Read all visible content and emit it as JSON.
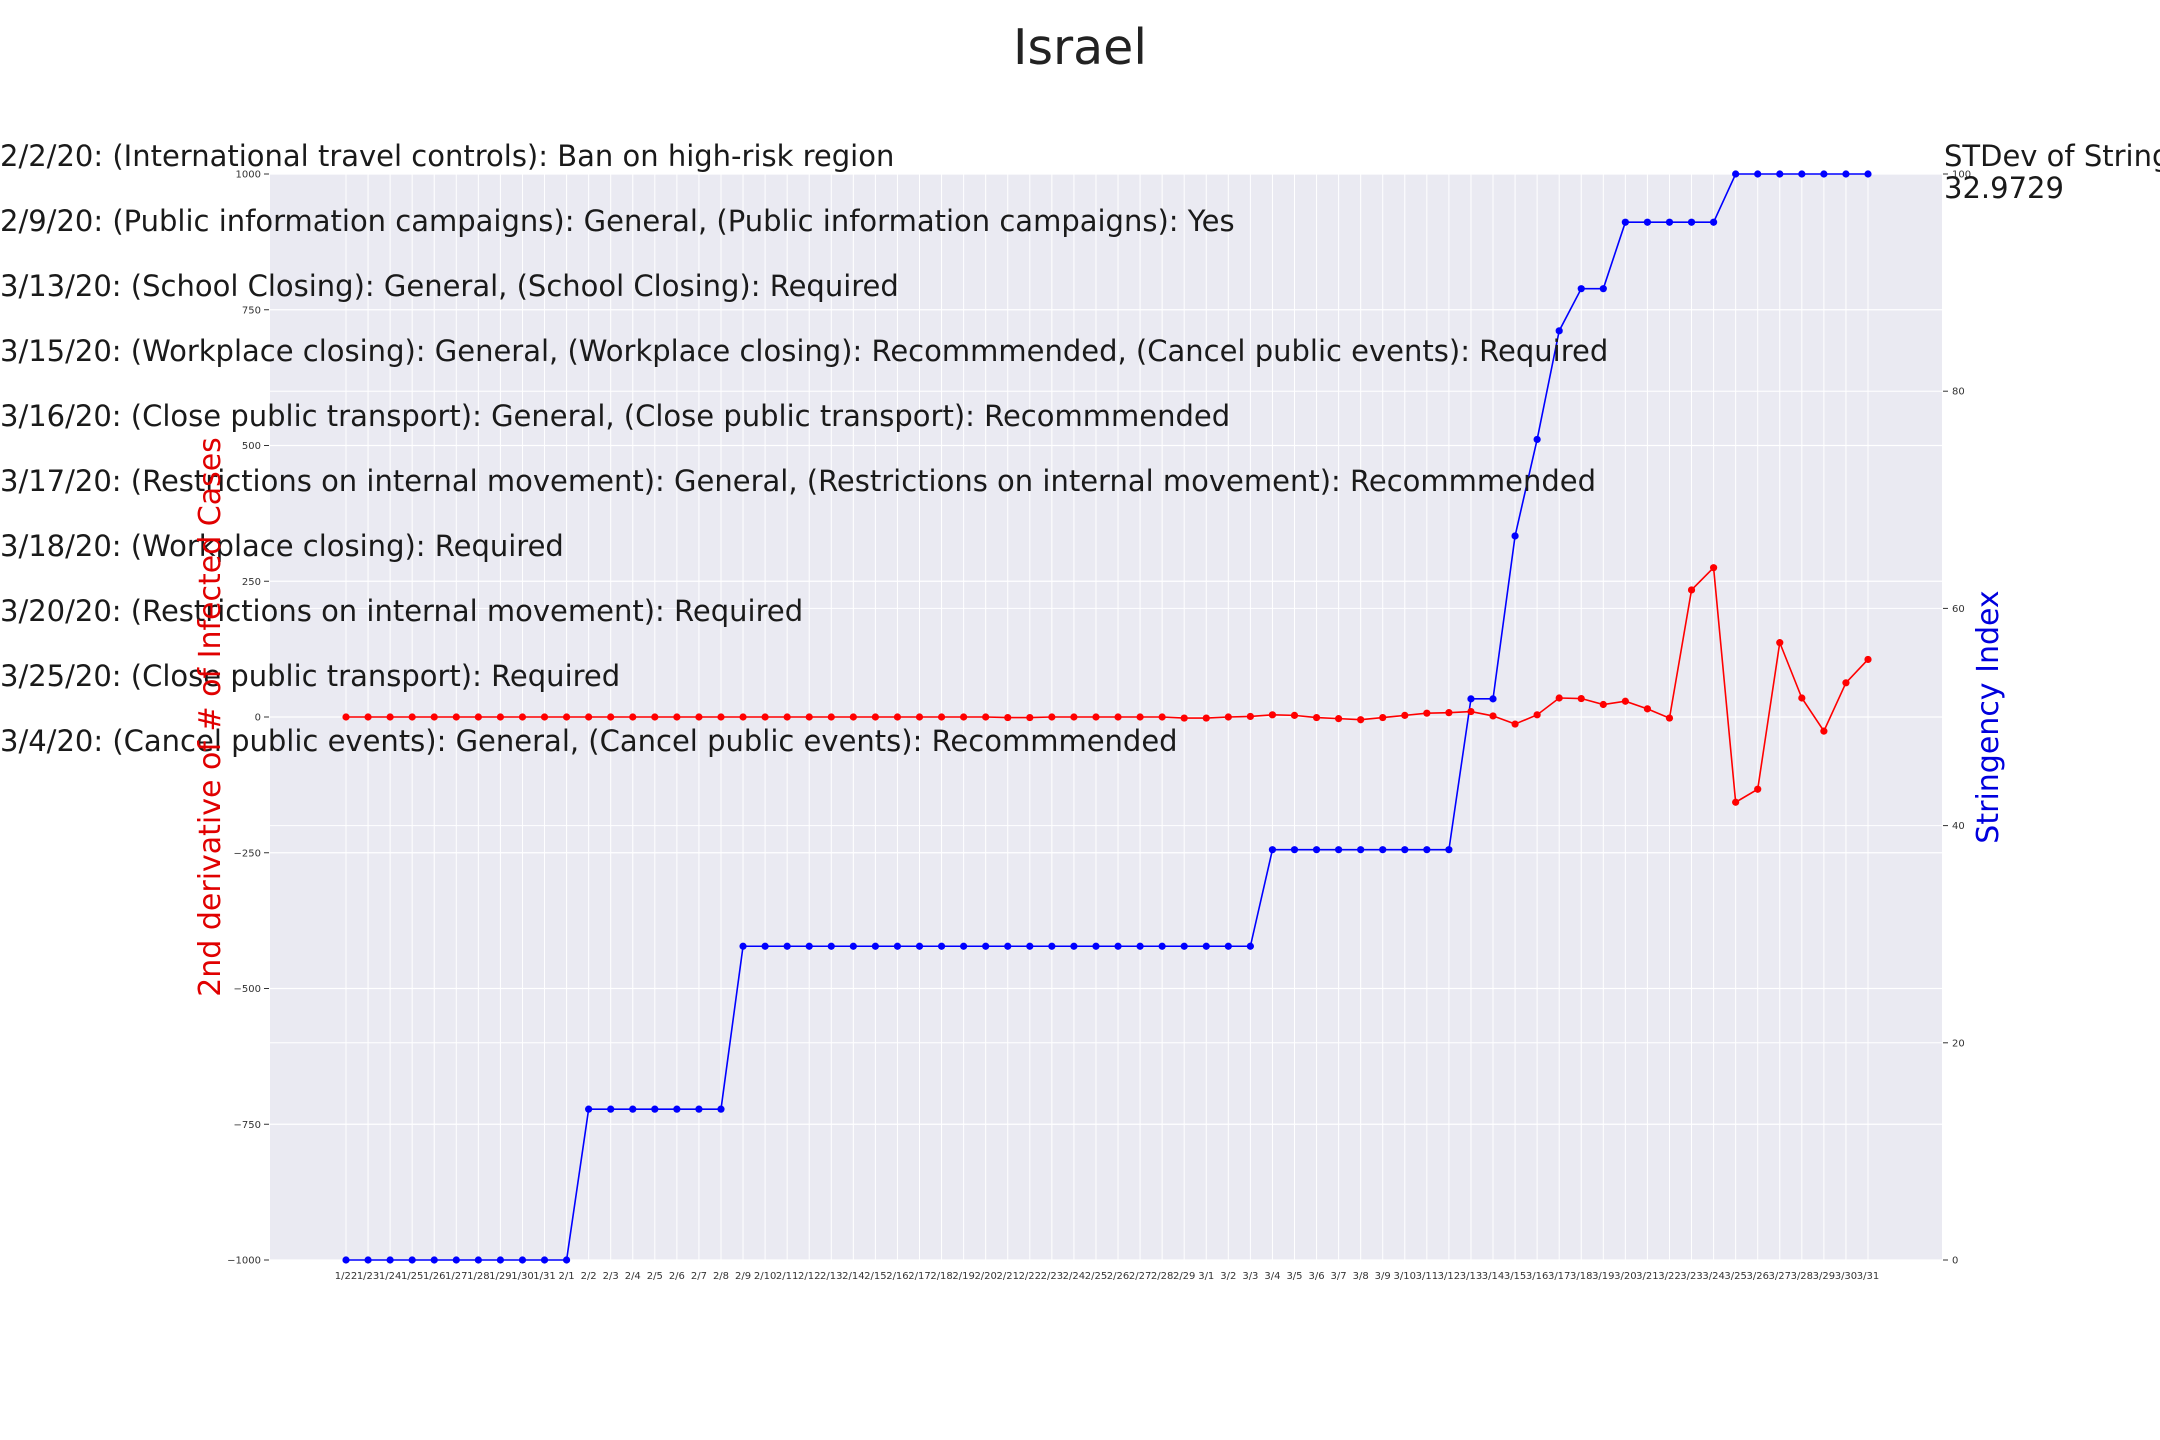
{
  "chart_data": {
    "type": "line",
    "title": "Israel",
    "x": [
      "1/22",
      "1/23",
      "1/24",
      "1/25",
      "1/26",
      "1/27",
      "1/28",
      "1/29",
      "1/30",
      "1/31",
      "2/1",
      "2/2",
      "2/3",
      "2/4",
      "2/5",
      "2/6",
      "2/7",
      "2/8",
      "2/9",
      "2/10",
      "2/11",
      "2/12",
      "2/13",
      "2/14",
      "2/15",
      "2/16",
      "2/17",
      "2/18",
      "2/19",
      "2/20",
      "2/21",
      "2/22",
      "2/23",
      "2/24",
      "2/25",
      "2/26",
      "2/27",
      "2/28",
      "2/29",
      "3/1",
      "3/2",
      "3/3",
      "3/4",
      "3/5",
      "3/6",
      "3/7",
      "3/8",
      "3/9",
      "3/10",
      "3/11",
      "3/12",
      "3/13",
      "3/14",
      "3/15",
      "3/16",
      "3/17",
      "3/18",
      "3/19",
      "3/20",
      "3/21",
      "3/22",
      "3/23",
      "3/24",
      "3/25",
      "3/26",
      "3/27",
      "3/28",
      "3/29",
      "3/30",
      "3/31"
    ],
    "series": [
      {
        "name": "",
        "axis": "left",
        "color": "#ff0000",
        "values": [
          0,
          0,
          0,
          0,
          0,
          0,
          0,
          0,
          0,
          0,
          0,
          0,
          0,
          0,
          0,
          0,
          0,
          0,
          0,
          0,
          0,
          0,
          0,
          0,
          0,
          0,
          0,
          0,
          0,
          0,
          -1,
          -1,
          0,
          0,
          0,
          0,
          0,
          0,
          -2,
          -2,
          0,
          1,
          4,
          3,
          -1,
          -3,
          -5,
          -1,
          3,
          7,
          8,
          10,
          2,
          -13,
          4,
          35,
          34,
          23,
          29,
          15,
          -2,
          234,
          275,
          -157,
          -133,
          137,
          35,
          -26,
          63,
          106
        ]
      },
      {
        "name": "",
        "axis": "right",
        "color": "#0000ff",
        "values": [
          0,
          0,
          0,
          0,
          0,
          0,
          0,
          0,
          0,
          0,
          0,
          13.89,
          13.89,
          13.89,
          13.89,
          13.89,
          13.89,
          13.89,
          28.89,
          28.89,
          28.89,
          28.89,
          28.89,
          28.89,
          28.89,
          28.89,
          28.89,
          28.89,
          28.89,
          28.89,
          28.89,
          28.89,
          28.89,
          28.89,
          28.89,
          28.89,
          28.89,
          28.89,
          28.89,
          28.89,
          28.89,
          28.89,
          37.78,
          37.78,
          37.78,
          37.78,
          37.78,
          37.78,
          37.78,
          37.78,
          37.78,
          51.67,
          51.67,
          66.67,
          75.56,
          85.56,
          89.44,
          89.44,
          95.56,
          95.56,
          95.56,
          95.56,
          95.56,
          100,
          100,
          100,
          100,
          100,
          100,
          100
        ]
      }
    ],
    "ylabel": "2nd derivative of # of Infected Cases",
    "ylabel_right": "Stringency Index",
    "ylim": [
      -1000,
      1000
    ],
    "ylim_right": [
      0,
      100
    ],
    "yticks": [
      "1000",
      "750",
      "500",
      "250",
      "0",
      "−250",
      "−500",
      "−750",
      "−1000"
    ],
    "yticks_right": [
      "100",
      "80",
      "60",
      "40",
      "20",
      "0"
    ],
    "grid": true,
    "annotations": [
      "2/2/20: (International travel controls): Ban on high-risk region",
      "2/9/20: (Public information campaigns): General, (Public information campaigns): Yes",
      "3/13/20: (School Closing): General, (School Closing): Required",
      "3/15/20: (Workplace closing): General, (Workplace closing): Recommmended, (Cancel public events): Required",
      "3/16/20: (Close public transport): General, (Close public transport): Recommmended",
      "3/17/20: (Restrictions on internal movement): General, (Restrictions on internal movement): Recommmended",
      "3/18/20: (Workplace closing): Required",
      "3/20/20: (Restrictions on internal movement): Required",
      "3/25/20: (Close public transport): Required",
      "3/4/20: (Cancel public events): General, (Cancel public events): Recommmended"
    ],
    "stdev_label": "STDev of Stringency Index",
    "stdev_value": "32.9729",
    "colors": {
      "background": "#eaeaf2",
      "grid": "#ffffff"
    }
  }
}
